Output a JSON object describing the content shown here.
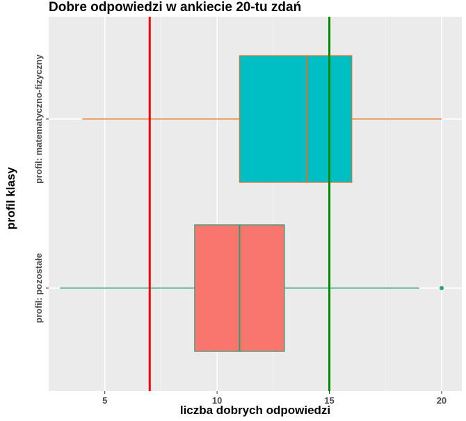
{
  "chart_data": {
    "type": "boxplot",
    "orientation": "horizontal",
    "title": "Dobre odpowiedzi w ankiecie 20-tu zdań",
    "xlabel": "liczba dobrych odpowiedzi",
    "ylabel": "profil klasy",
    "xlim": [
      2.5,
      20.9
    ],
    "x_ticks": [
      5,
      10,
      15,
      20
    ],
    "grid": true,
    "background": "#ebebeb",
    "categories": [
      "profil: matematyczno-fizyczny",
      "profil: pozostałe"
    ],
    "series": [
      {
        "category": "profil: matematyczno-fizyczny",
        "min": 4,
        "q1": 11,
        "median": 14,
        "q3": 16,
        "max": 20,
        "outliers": [],
        "fill": "#00bfc4",
        "line": "#e0701f"
      },
      {
        "category": "profil: pozostałe",
        "min": 3,
        "q1": 9,
        "median": 11,
        "q3": 13,
        "max": 19,
        "outliers": [
          20
        ],
        "fill": "#f8766d",
        "line": "#24a07b"
      }
    ],
    "reference_lines": [
      {
        "x": 7,
        "color": "#ff0000"
      },
      {
        "x": 15,
        "color": "#008b00"
      }
    ]
  }
}
